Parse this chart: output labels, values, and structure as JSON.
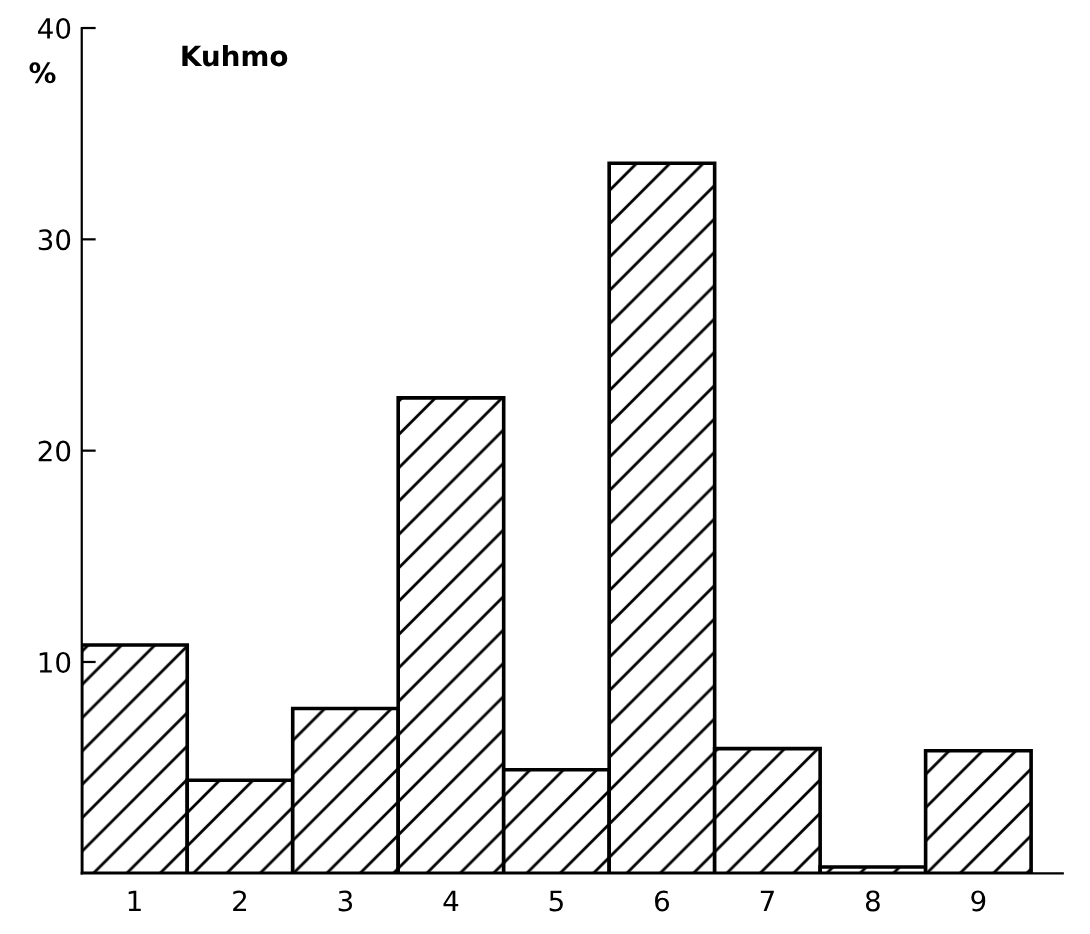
{
  "chart_data": {
    "type": "bar",
    "title": "Kuhmo",
    "ylabel": "%",
    "categories": [
      "1",
      "2",
      "3",
      "4",
      "5",
      "6",
      "7",
      "8",
      "9"
    ],
    "values": [
      10.8,
      4.4,
      7.8,
      22.5,
      4.9,
      33.6,
      5.9,
      0.3,
      5.8
    ],
    "color": "#000000",
    "ylim": [
      0,
      40
    ],
    "yticks": [
      10,
      20,
      30,
      40
    ],
    "grid": false
  }
}
